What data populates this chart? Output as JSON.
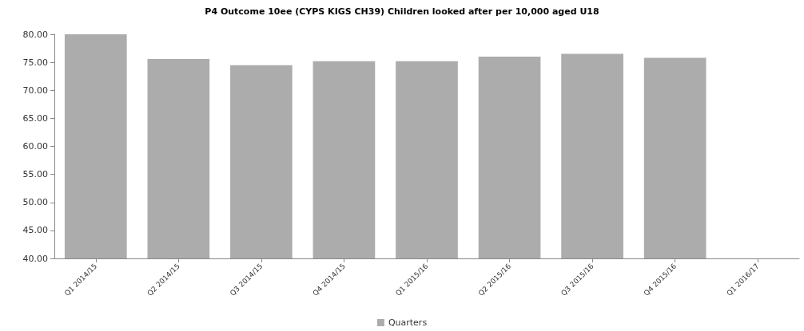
{
  "chart_data": {
    "type": "bar",
    "title": "P4 Outcome 10ee (CYPS KIGS CH39) Children looked after per 10,000 aged U18",
    "categories": [
      "Q1 2014/15",
      "Q2 2014/15",
      "Q3 2014/15",
      "Q4 2014/15",
      "Q1 2015/16",
      "Q2 2015/16",
      "Q3 2015/16",
      "Q4 2015/16",
      "Q1 2016/17"
    ],
    "series": [
      {
        "name": "Quarters",
        "color": "#acacac",
        "values": [
          80.0,
          75.6,
          74.5,
          75.2,
          75.2,
          76.0,
          76.5,
          75.8,
          null
        ]
      }
    ],
    "ylim": [
      40,
      80
    ],
    "yticks": [
      {
        "value": 40,
        "label": "40.00"
      },
      {
        "value": 45,
        "label": "45.00"
      },
      {
        "value": 50,
        "label": "50.00"
      },
      {
        "value": 55,
        "label": "55.00"
      },
      {
        "value": 60,
        "label": "60.00"
      },
      {
        "value": 65,
        "label": "65.00"
      },
      {
        "value": 70,
        "label": "70.00"
      },
      {
        "value": 75,
        "label": "75.00"
      },
      {
        "value": 80,
        "label": "80.00"
      }
    ],
    "grid": false,
    "legend": "bottom"
  }
}
